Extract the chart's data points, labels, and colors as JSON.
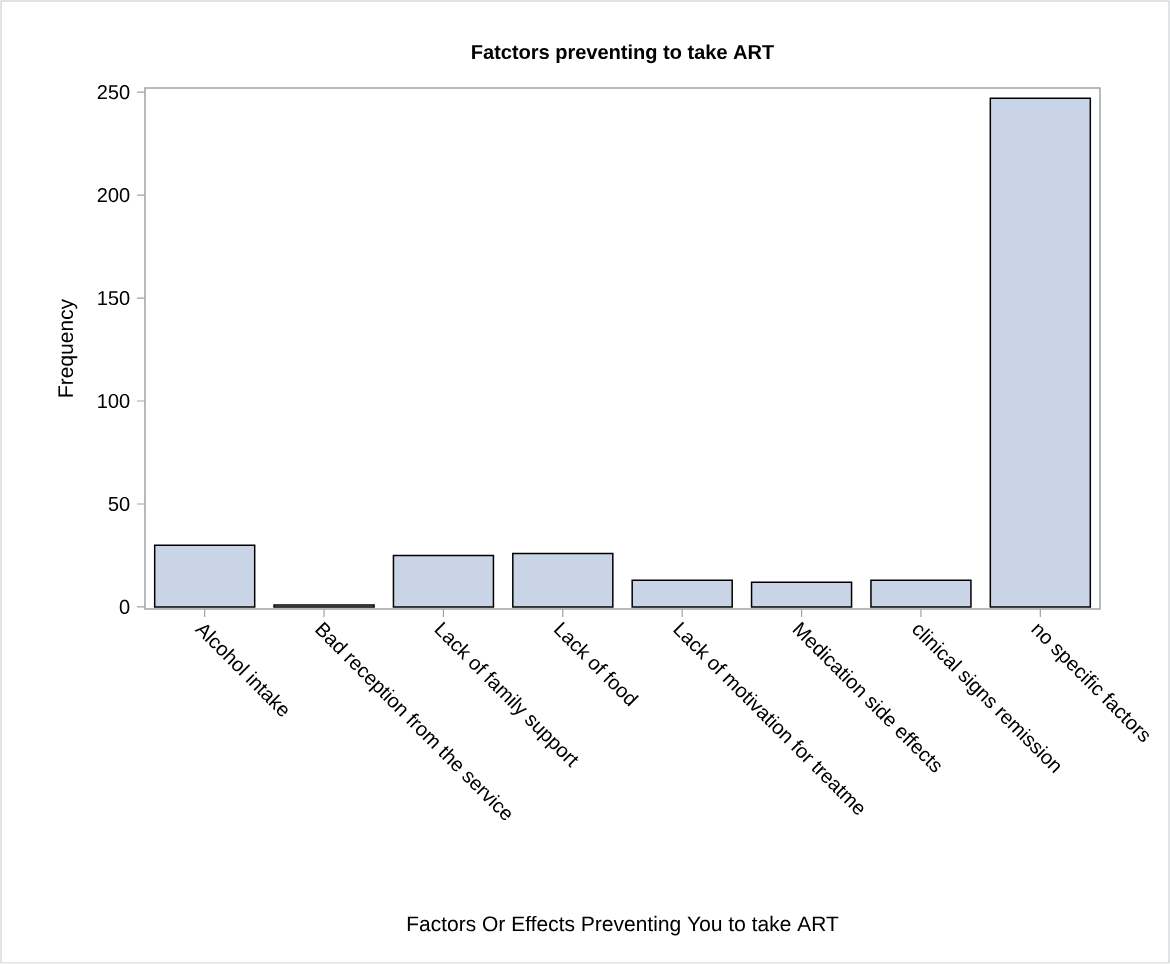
{
  "chart_data": {
    "type": "bar",
    "title": "Fatctors preventing to take ART",
    "xlabel": "Factors Or Effects Preventing You to take ART",
    "ylabel": "Frequency",
    "categories": [
      "Alcohol intake",
      "Bad reception from the service",
      "Lack of family support",
      "Lack of food",
      "Lack of motivation for treatme",
      "Medication side effects",
      "clinical signs remission",
      "no specific factors"
    ],
    "values": [
      30,
      1,
      25,
      26,
      13,
      12,
      13,
      247
    ],
    "color": "#c9d5e6",
    "ylim": [
      -1,
      252
    ],
    "yticks": [
      0,
      50,
      100,
      150,
      200,
      250
    ],
    "grid": false
  }
}
